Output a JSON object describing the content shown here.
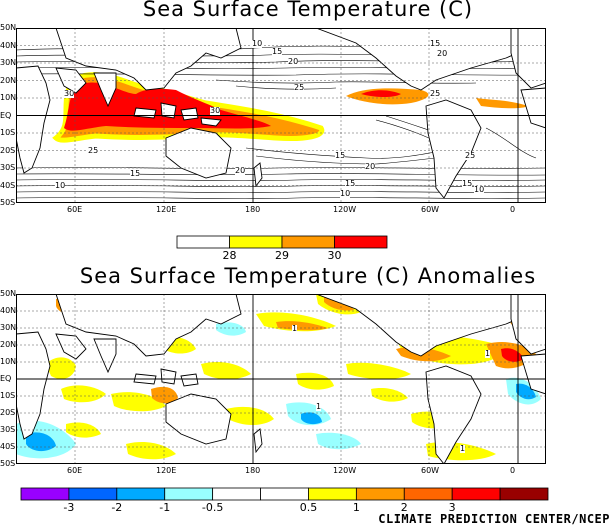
{
  "top_map": {
    "title": "Sea Surface Temperature (C)",
    "lat_ticks": [
      "50N",
      "40N",
      "30N",
      "20N",
      "10N",
      "EQ",
      "10S",
      "20S",
      "30S",
      "40S",
      "50S"
    ],
    "lon_ticks": [
      "60E",
      "120E",
      "180",
      "120W",
      "60W",
      "0"
    ],
    "contour_labels": [
      "10",
      "15",
      "20",
      "25",
      "30",
      "30",
      "25",
      "20",
      "15",
      "10",
      "15",
      "20",
      "25",
      "15",
      "10",
      "15",
      "20",
      "25",
      "15",
      "10"
    ],
    "legend": {
      "colors": [
        "#ffffff",
        "#ffff00",
        "#ff9900",
        "#ff0000"
      ],
      "labels": [
        "28",
        "29",
        "30"
      ]
    }
  },
  "bottom_map": {
    "title": "Sea Surface Temperature (C) Anomalies",
    "lat_ticks": [
      "50N",
      "40N",
      "30N",
      "20N",
      "10N",
      "EQ",
      "10S",
      "20S",
      "30S",
      "40S",
      "50S"
    ],
    "lon_ticks": [
      "60E",
      "120E",
      "180",
      "120W",
      "60W",
      "0"
    ],
    "contour_labels": [
      "1",
      "1",
      "1",
      "1"
    ],
    "legend": {
      "colors": [
        "#9900ff",
        "#0066ff",
        "#00aaff",
        "#99ffff",
        "#ffffff",
        "#ffffff",
        "#ffff00",
        "#ff9900",
        "#ff6600",
        "#ff0000",
        "#990000"
      ],
      "labels": [
        "-3",
        "-2",
        "-1",
        "-0.5",
        "0.5",
        "1",
        "2",
        "3"
      ]
    }
  },
  "credit": "CLIMATE PREDICTION CENTER/NCEP",
  "colors": {
    "land": "#ffffff",
    "coast": "#000000",
    "grid": "#555555",
    "warm1": "#ffff00",
    "warm2": "#ff9900",
    "warm3": "#ff0000",
    "cool1": "#99ffff",
    "cool2": "#00aaff"
  }
}
